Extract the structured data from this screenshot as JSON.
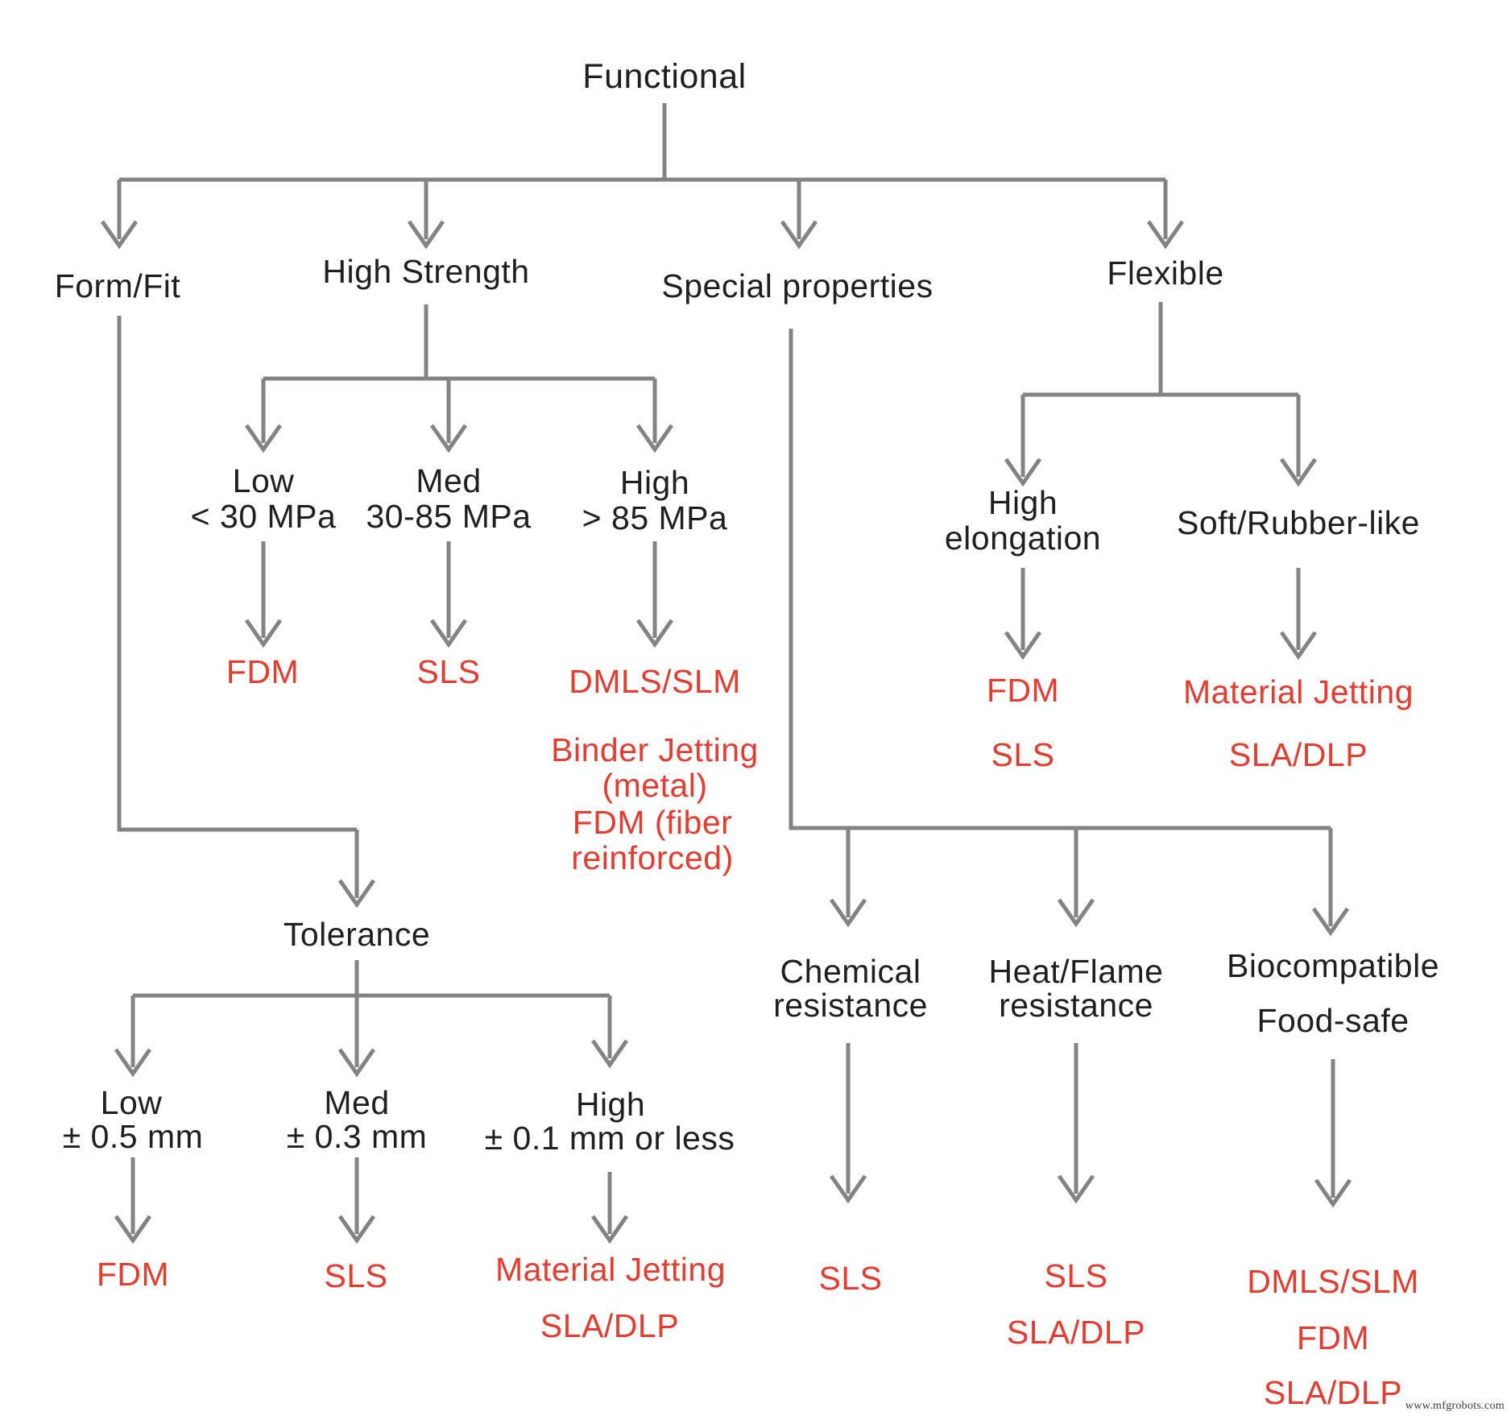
{
  "diagram": {
    "root": {
      "label": "Functional"
    },
    "branches": {
      "form_fit": {
        "label": "Form/Fit"
      },
      "high_strength": {
        "label": "High Strength",
        "low": {
          "name": "Low",
          "range": "< 30 MPa",
          "result": "FDM"
        },
        "med": {
          "name": "Med",
          "range": "30-85 MPa",
          "result": "SLS"
        },
        "high": {
          "name": "High",
          "range": "> 85 MPa",
          "result1": "DMLS/SLM",
          "result2_line1": "Binder Jetting",
          "result2_line2": "(metal)",
          "result3_line1": "FDM (fiber",
          "result3_line2": "reinforced)"
        }
      },
      "special_properties": {
        "label": "Special properties",
        "chemical": {
          "line1": "Chemical",
          "line2": "resistance",
          "result": "SLS"
        },
        "heat": {
          "line1": "Heat/Flame",
          "line2": "resistance",
          "result1": "SLS",
          "result2": "SLA/DLP"
        },
        "bio": {
          "line1": "Biocompatible",
          "line2": "Food-safe",
          "result1": "DMLS/SLM",
          "result2": "FDM",
          "result3": "SLA/DLP"
        }
      },
      "flexible": {
        "label": "Flexible",
        "high_elongation": {
          "line1": "High",
          "line2": "elongation",
          "result1": "FDM",
          "result2": "SLS"
        },
        "soft": {
          "label": "Soft/Rubber-like",
          "result1": "Material Jetting",
          "result2": "SLA/DLP"
        }
      },
      "tolerance": {
        "label": "Tolerance",
        "low": {
          "name": "Low",
          "range": "± 0.5 mm",
          "result": "FDM"
        },
        "med": {
          "name": "Med",
          "range": "± 0.3 mm",
          "result": "SLS"
        },
        "high": {
          "name": "High",
          "range": "± 0.1 mm or less",
          "result1": "Material Jetting",
          "result2": "SLA/DLP"
        }
      }
    },
    "watermark": "www.mfgrobots.com",
    "colors": {
      "line": "#838383",
      "text": "#1f1f1f",
      "result": "#e83b2e"
    }
  }
}
